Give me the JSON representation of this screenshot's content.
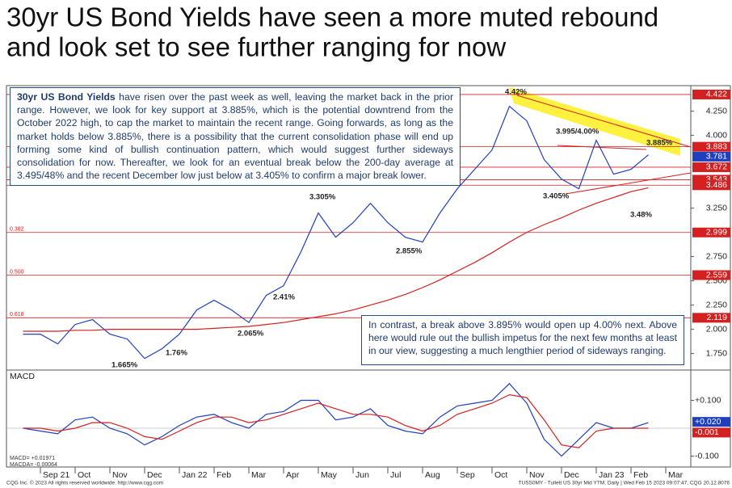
{
  "chart_data": {
    "type": "line",
    "title": [
      "30yr US Bond Yields have seen a more muted rebound",
      "and look set to see further ranging for now"
    ],
    "commentary": {
      "bold": "30yr US Bond Yields",
      "text": " have risen over the past week as well, leaving the market back in the prior range. However, we look for key support at 3.885%, which is the potential downtrend from the October 2022 high, to cap the market to maintain the recent range. Going forwards, as long as the market holds below 3.885%, there is a possibility that the current consolidation phase will end up forming some kind of bullish continuation pattern, which would suggest further sideways consolidation for now. Thereafter, we look for an eventual break below the 200-day average at 3.495/48% and the recent December low just below at 3.405% to confirm a major break lower."
    },
    "commentary2": "In contrast, a break above 3.895% would open up 4.00% next. Above here would rule out the bullish impetus for the next few months at least in our view, suggesting a much lengthier period of sideways ranging.",
    "categories": [
      null,
      "Sep 21",
      null,
      "Oct",
      null,
      "Nov",
      null,
      "Dec",
      null,
      "Jan 22",
      null,
      "Feb",
      null,
      "Mar",
      null,
      "Apr",
      null,
      "May",
      null,
      "Jun",
      null,
      "Jul",
      null,
      "Aug",
      null,
      "Sep",
      null,
      "Oct",
      null,
      "Nov",
      null,
      "Dec",
      null,
      "Jan 23",
      null,
      "Feb",
      null,
      "Mar",
      null
    ],
    "series": [
      {
        "color": "#1f3fbf",
        "values": [
          1.95,
          1.95,
          1.85,
          2.05,
          2.1,
          1.95,
          1.9,
          1.7,
          1.8,
          1.95,
          2.2,
          2.3,
          2.2,
          2.07,
          2.35,
          2.45,
          2.8,
          3.2,
          2.95,
          3.1,
          3.3,
          3.1,
          2.95,
          2.9,
          3.2,
          3.45,
          3.65,
          3.85,
          4.3,
          4.15,
          3.75,
          3.55,
          3.45,
          3.95,
          3.6,
          3.65,
          3.8,
          null,
          null
        ]
      },
      {
        "color": "#d42020",
        "values": [
          1.98,
          1.98,
          1.98,
          1.99,
          1.99,
          2.0,
          2.0,
          2.0,
          2.0,
          2.0,
          2.0,
          2.01,
          2.02,
          2.03,
          2.05,
          2.07,
          2.1,
          2.13,
          2.16,
          2.2,
          2.25,
          2.3,
          2.36,
          2.43,
          2.51,
          2.6,
          2.69,
          2.79,
          2.9,
          3.0,
          3.08,
          3.15,
          3.23,
          3.3,
          3.36,
          3.42,
          3.46,
          null,
          null
        ]
      },
      {
        "color": "#1f3fbf",
        "axis": "y2",
        "values": [
          0.0,
          -0.01,
          -0.02,
          0.03,
          0.04,
          0.0,
          -0.02,
          -0.06,
          -0.03,
          0.01,
          0.04,
          0.05,
          0.02,
          0.0,
          0.05,
          0.06,
          0.1,
          0.1,
          0.03,
          0.04,
          0.07,
          0.01,
          -0.01,
          -0.02,
          0.04,
          0.08,
          0.09,
          0.1,
          0.16,
          0.09,
          -0.04,
          -0.1,
          -0.04,
          0.02,
          0.0,
          0.0,
          0.02,
          null,
          null
        ]
      },
      {
        "color": "#d42020",
        "axis": "y2",
        "values": [
          0.0,
          0.0,
          -0.01,
          0.0,
          0.02,
          0.02,
          0.0,
          -0.03,
          -0.04,
          -0.01,
          0.02,
          0.04,
          0.04,
          0.02,
          0.03,
          0.05,
          0.07,
          0.09,
          0.07,
          0.05,
          0.05,
          0.04,
          0.01,
          -0.01,
          0.01,
          0.05,
          0.07,
          0.09,
          0.12,
          0.11,
          0.03,
          -0.06,
          -0.07,
          -0.01,
          0.0,
          0.0,
          0.0,
          null,
          null
        ]
      }
    ],
    "ylim": [
      1.58,
      4.505
    ],
    "yticks": [
      {
        "value": 4.25,
        "label": "4.250"
      },
      {
        "value": 4.0,
        "label": "4.000"
      },
      {
        "value": 3.25,
        "label": "3.250"
      },
      {
        "value": 2.75,
        "label": "2.750"
      },
      {
        "value": 2.5,
        "label": "2.500"
      },
      {
        "value": 2.25,
        "label": "2.250"
      },
      {
        "value": 2.0,
        "label": "2.000"
      },
      {
        "value": 1.75,
        "label": "1.750"
      }
    ],
    "y2lim": [
      -0.139,
      0.203
    ],
    "y2ticks": [
      {
        "value": 0.1,
        "label": "+0.100"
      },
      {
        "value": -0.1,
        "label": "-0.100"
      }
    ],
    "levels": [
      {
        "value": 4.422,
        "color": "#d42020",
        "line": true
      },
      {
        "value": 3.883,
        "color": "#d42020",
        "line": true
      },
      {
        "value": 3.781,
        "color": "#1f3fbf",
        "line": false
      },
      {
        "value": 3.672,
        "color": "#d42020",
        "line": true
      },
      {
        "value": 3.543,
        "color": "#d42020",
        "line": true
      },
      {
        "value": 3.486,
        "color": "#d42020",
        "line": true
      },
      {
        "value": 2.999,
        "color": "#d42020",
        "line": true,
        "fib": "0.382"
      },
      {
        "value": 2.559,
        "color": "#d42020",
        "line": true,
        "fib": "0.500"
      },
      {
        "value": 2.119,
        "color": "#d42020",
        "line": true,
        "fib": "0.618"
      }
    ],
    "macd_levels": [
      {
        "value": 0.02,
        "label": "+0.020",
        "color": "#1f3fbf"
      },
      {
        "value": -0.001,
        "label": "-0.001",
        "color": "#d42020"
      }
    ],
    "annotations": [
      "4.42%",
      "3.995/4.00%",
      "3.885%",
      "3.405%",
      "3.48%",
      "3.305%",
      "2.855%",
      "2.41%",
      "2.065%",
      "1.76%",
      "1.665%"
    ],
    "macd_title": "MACD",
    "macd_legend": [
      "MACD= +0.01971",
      "MACDA= -0.00064"
    ],
    "footer_left": "CQG Inc. © 2023 All rights reserved worldwide. http://www.cqg.com",
    "footer_right": "TUSS0MY - Tullett US 30yr Mid YTM, Daily | Wed Feb 15 2023 09:07:47, CQG 20.12.8076",
    "grid": false
  }
}
